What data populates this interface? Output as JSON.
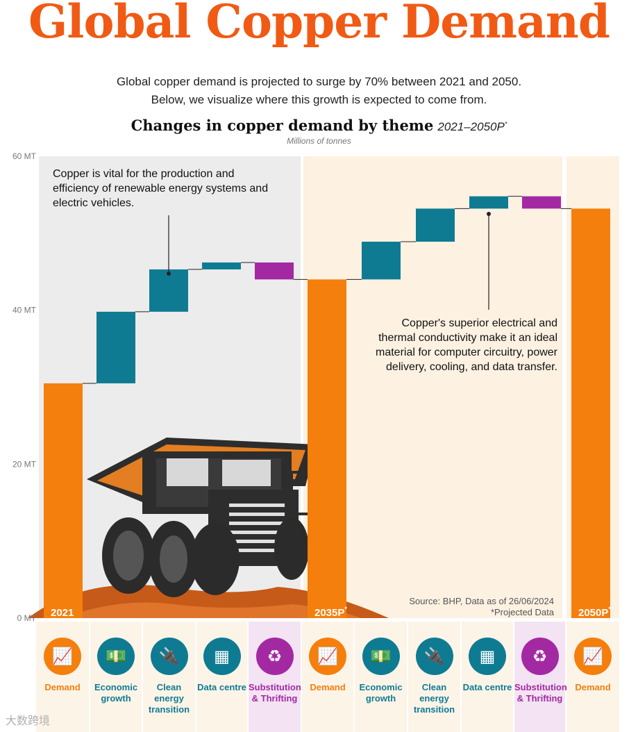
{
  "header": {
    "title": "Global Copper Demand",
    "intro_line1": "Global copper demand is projected to surge by 70% between 2021 and 2050.",
    "intro_line2": "Below, we visualize where this growth is expected to come from.",
    "subtitle": "Changes in copper demand by theme",
    "subtitle_range": "2021–2050P",
    "subtitle_mark": "*",
    "units": "Millions of tonnes"
  },
  "colors": {
    "demand": "#f57f0c",
    "growth": "#0f7b92",
    "reduction": "#a329a3",
    "title": "#f05a14",
    "panel_grey": "#ececec",
    "panel_cream": "#fdf1e2",
    "tile_bg": "#fdf4e8",
    "tile_bg_purple": "#f3e3f3"
  },
  "chart_data": {
    "type": "bar",
    "title": "Changes in copper demand by theme",
    "subtitle": "2021–2050P*",
    "ylabel": "Millions of tonnes",
    "ylim": [
      0,
      60
    ],
    "yticks": [
      0,
      20,
      40,
      60
    ],
    "ytick_labels": [
      "0 MT",
      "20 MT",
      "40 MT",
      "60 MT"
    ],
    "categories": [
      "Demand",
      "Economic growth",
      "Clean energy transition",
      "Data centre",
      "Substitution & Thrifting",
      "Demand",
      "Economic growth",
      "Clean energy transition",
      "Data centre",
      "Substitution & Thrifting",
      "Demand"
    ],
    "bars": [
      {
        "kind": "total",
        "start": 0,
        "end": 30.5,
        "label": "2021"
      },
      {
        "kind": "increase",
        "start": 30.5,
        "end": 39.8
      },
      {
        "kind": "increase",
        "start": 39.8,
        "end": 45.3
      },
      {
        "kind": "increase",
        "start": 45.3,
        "end": 46.2
      },
      {
        "kind": "decrease",
        "start": 46.2,
        "end": 44.0
      },
      {
        "kind": "total",
        "start": 0,
        "end": 44.0,
        "label": "2035P*"
      },
      {
        "kind": "increase",
        "start": 44.0,
        "end": 48.9
      },
      {
        "kind": "increase",
        "start": 48.9,
        "end": 53.2
      },
      {
        "kind": "increase",
        "start": 53.2,
        "end": 54.8
      },
      {
        "kind": "decrease",
        "start": 54.8,
        "end": 53.2
      },
      {
        "kind": "total",
        "start": 0,
        "end": 53.2,
        "label": "2050P*"
      }
    ],
    "grid": false,
    "legend": "none"
  },
  "annotations": {
    "left": "Copper is vital for the production and efficiency of renewable energy systems and electric vehicles.",
    "right": "Copper's superior electrical and thermal conductivity make it an ideal material for computer circuitry, power delivery, cooling, and data transfer."
  },
  "source": {
    "line1": "Source: BHP, Data as of 26/06/2024",
    "line2": "*Projected Data"
  },
  "tiles": [
    {
      "label": "Demand",
      "icon": "bar-chart-icon",
      "glyph": "📈",
      "theme": "demand"
    },
    {
      "label": "Economic growth",
      "icon": "money-stack-icon",
      "glyph": "💵",
      "theme": "growth"
    },
    {
      "label": "Clean energy transition",
      "icon": "plug-leaf-icon",
      "glyph": "🔌",
      "theme": "growth"
    },
    {
      "label": "Data centre",
      "icon": "chip-icon",
      "glyph": "▦",
      "theme": "growth"
    },
    {
      "label": "Substitution & Thrifting",
      "icon": "recycle-icon",
      "glyph": "♻",
      "theme": "reduction"
    },
    {
      "label": "Demand",
      "icon": "bar-chart-icon",
      "glyph": "📈",
      "theme": "demand"
    },
    {
      "label": "Economic growth",
      "icon": "money-stack-icon",
      "glyph": "💵",
      "theme": "growth"
    },
    {
      "label": "Clean energy transition",
      "icon": "plug-leaf-icon",
      "glyph": "🔌",
      "theme": "growth"
    },
    {
      "label": "Data centre",
      "icon": "chip-icon",
      "glyph": "▦",
      "theme": "growth"
    },
    {
      "label": "Substitution & Thrifting",
      "icon": "recycle-icon",
      "glyph": "♻",
      "theme": "reduction"
    },
    {
      "label": "Demand",
      "icon": "bar-chart-icon",
      "glyph": "📈",
      "theme": "demand"
    }
  ],
  "watermark": "大数跨境"
}
